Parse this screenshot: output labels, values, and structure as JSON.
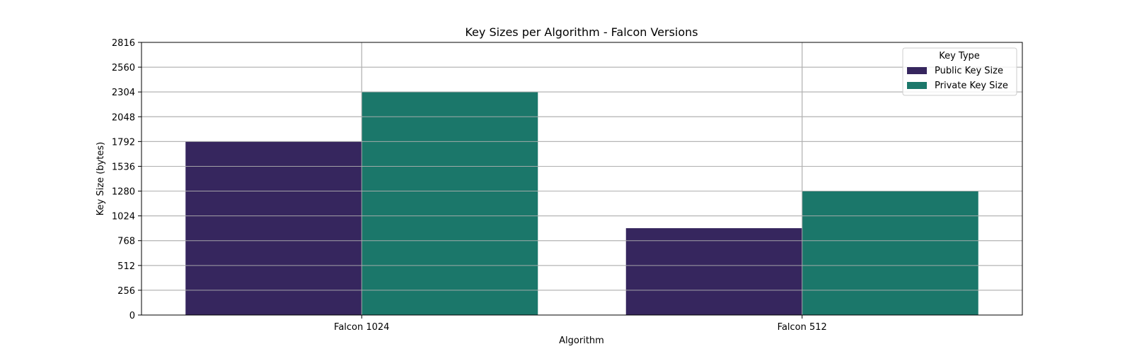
{
  "chart_data": {
    "type": "bar",
    "title": "Key Sizes per Algorithm - Falcon Versions",
    "xlabel": "Algorithm",
    "ylabel": "Key Size (bytes)",
    "categories": [
      "Falcon 1024",
      "Falcon 512"
    ],
    "series": [
      {
        "name": "Public Key Size",
        "values": [
          1793,
          897
        ],
        "color": "#36265e"
      },
      {
        "name": "Private Key Size",
        "values": [
          2305,
          1281
        ],
        "color": "#1b776a"
      }
    ],
    "ylim": [
      0,
      2816
    ],
    "yticks": [
      0,
      256,
      512,
      768,
      1024,
      1280,
      1536,
      1792,
      2048,
      2304,
      2560,
      2816
    ],
    "ytick_labels": [
      "0",
      "256",
      "512",
      "768",
      "1024",
      "1280",
      "1536",
      "1792",
      "2048",
      "2304",
      "2560",
      "2816"
    ],
    "grid": true,
    "legend": {
      "title": "Key Type",
      "placement": "top-right"
    }
  }
}
